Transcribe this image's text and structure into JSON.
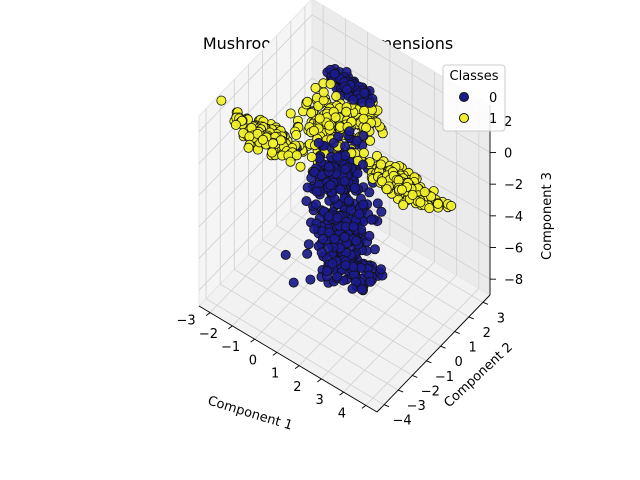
{
  "chart_data": {
    "type": "scatter",
    "title": "Mushroom - PCA: 3 Dimensions",
    "xlabel": "Component 1",
    "ylabel": "Component 2",
    "zlabel": "Component 3",
    "xlim": [
      -3.5,
      4.5
    ],
    "ylim": [
      -4.5,
      3.5
    ],
    "zlim": [
      -9,
      3
    ],
    "xticks": [
      "−3",
      "−2",
      "−1",
      "0",
      "1",
      "2",
      "3",
      "4"
    ],
    "yticks": [
      "−4",
      "−3",
      "−2",
      "−1",
      "0",
      "1",
      "2",
      "3"
    ],
    "zticks": [
      "−8",
      "−6",
      "−4",
      "−2",
      "0",
      "2"
    ],
    "grid": true,
    "legend": {
      "title": "Classes",
      "position": "top-right",
      "entries": [
        {
          "label": "0",
          "color": "#1a1a8c"
        },
        {
          "label": "1",
          "color": "#f2f22a"
        }
      ]
    },
    "series": [
      {
        "name": "0",
        "color": "#1a1a8c",
        "clusters": [
          {
            "center": [
              -0.6,
              1.6,
              1.6
            ],
            "spread": [
              0.5,
              0.15,
              0.25
            ],
            "n": 90
          },
          {
            "center": [
              0.3,
              -0.5,
              -1.0
            ],
            "spread": [
              0.4,
              0.6,
              0.8
            ],
            "n": 140
          },
          {
            "center": [
              0.6,
              -0.9,
              -4.0
            ],
            "spread": [
              0.6,
              0.7,
              1.3
            ],
            "n": 220
          },
          {
            "center": [
              1.2,
              -0.8,
              -6.2
            ],
            "spread": [
              0.5,
              0.3,
              0.5
            ],
            "n": 60
          }
        ]
      },
      {
        "name": "1",
        "color": "#f2f22a",
        "clusters": [
          {
            "center": [
              -2.3,
              -1.6,
              0.0
            ],
            "spread": [
              0.7,
              0.25,
              0.3
            ],
            "n": 190
          },
          {
            "center": [
              -0.9,
              0.5,
              -0.3
            ],
            "spread": [
              0.45,
              0.4,
              0.9
            ],
            "n": 170
          },
          {
            "center": [
              2.6,
              0.2,
              -0.6
            ],
            "spread": [
              0.8,
              0.2,
              0.35
            ],
            "n": 190
          },
          {
            "center": [
              0.2,
              1.4,
              0.3
            ],
            "spread": [
              0.35,
              0.35,
              0.4
            ],
            "n": 60
          }
        ]
      }
    ]
  }
}
